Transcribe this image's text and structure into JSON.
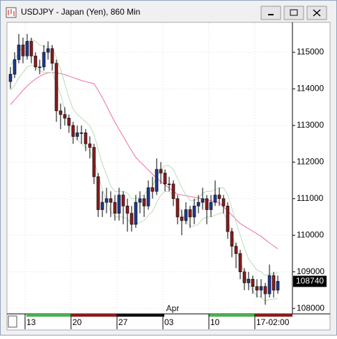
{
  "window": {
    "title": "USDJPY - Japan (Yen), 860 Min"
  },
  "chart_data": {
    "type": "candlestick",
    "categories": [
      null,
      null,
      null,
      null,
      "13",
      null,
      null,
      null,
      null,
      null,
      null,
      null,
      null,
      null,
      null,
      "20",
      null,
      null,
      null,
      null,
      null,
      null,
      null,
      null,
      null,
      null,
      "27",
      null,
      null,
      null,
      null,
      null,
      null,
      null,
      null,
      null,
      null,
      "03",
      null,
      null,
      null,
      null,
      null,
      null,
      null,
      null,
      null,
      null,
      "10",
      null,
      null,
      null,
      null,
      null,
      null,
      null,
      null,
      null,
      null,
      "17-02:00",
      null,
      null,
      null,
      null,
      null
    ],
    "month_label": "Apr",
    "open": [
      114200,
      114400,
      114800,
      115200,
      114900,
      115300,
      114900,
      114600,
      114600,
      115000,
      115100,
      114700,
      113400,
      113300,
      113200,
      113000,
      112700,
      112800,
      112800,
      112500,
      112400,
      111600,
      110700,
      110900,
      111000,
      110900,
      110600,
      111100,
      110800,
      110600,
      110300,
      110900,
      111000,
      110800,
      111300,
      111200,
      111800,
      111700,
      111400,
      111400,
      111000,
      110500,
      110400,
      110700,
      110500,
      110800,
      110900,
      111000,
      110700,
      110900,
      111100,
      111000,
      110800,
      110100,
      109700,
      109500,
      109000,
      108700,
      108800,
      108600,
      108500,
      108600,
      108400,
      108900,
      108500
    ],
    "high": [
      114600,
      115000,
      115500,
      115400,
      115500,
      115400,
      115000,
      114800,
      115200,
      115300,
      115200,
      114800,
      113600,
      113500,
      113300,
      113100,
      113000,
      113000,
      112900,
      112700,
      112500,
      111700,
      111200,
      111300,
      111200,
      111100,
      111300,
      111200,
      111000,
      110800,
      111100,
      111200,
      111100,
      111500,
      111600,
      112100,
      112000,
      111800,
      111600,
      111500,
      111100,
      110700,
      110900,
      110800,
      111000,
      111100,
      111300,
      111100,
      111100,
      111500,
      111300,
      111100,
      110900,
      110200,
      109800,
      109600,
      109100,
      109000,
      108900,
      108800,
      108800,
      108700,
      109200,
      109000,
      108900
    ],
    "low": [
      114000,
      114300,
      114700,
      114700,
      114800,
      114700,
      114500,
      114400,
      114500,
      114800,
      114500,
      113100,
      112900,
      113000,
      112800,
      112500,
      112600,
      112500,
      112300,
      112100,
      111400,
      110500,
      110500,
      110600,
      110500,
      110400,
      110400,
      110300,
      110100,
      110100,
      110200,
      110600,
      110500,
      110700,
      111000,
      111100,
      111400,
      111200,
      111200,
      110800,
      110300,
      110000,
      110300,
      110200,
      110300,
      110600,
      110700,
      110300,
      110500,
      110800,
      110800,
      110600,
      109900,
      109400,
      109100,
      108800,
      108500,
      108500,
      108400,
      108300,
      108300,
      108100,
      108300,
      108300,
      108400
    ],
    "close": [
      114400,
      114800,
      115200,
      114900,
      115300,
      114900,
      114600,
      114600,
      115000,
      115100,
      114700,
      113400,
      113300,
      113200,
      113000,
      112700,
      112800,
      112800,
      112500,
      112400,
      111600,
      110700,
      110900,
      111000,
      110900,
      110600,
      111100,
      110800,
      110600,
      110300,
      110900,
      111000,
      110800,
      111300,
      111200,
      111800,
      111700,
      111400,
      111400,
      111000,
      110500,
      110400,
      110700,
      110500,
      110800,
      110900,
      111000,
      110700,
      110900,
      111100,
      111000,
      110800,
      110100,
      109700,
      109500,
      109000,
      108700,
      108800,
      108600,
      108500,
      108600,
      108400,
      108900,
      108500,
      108740
    ],
    "up_color": "#1f3a93",
    "down_color": "#8b1c1c",
    "overlays": [
      {
        "color": "#f06aa8",
        "values": [
          113570,
          113700,
          113830,
          113960,
          114080,
          114180,
          114270,
          114340,
          114400,
          114440,
          114450,
          114440,
          114420,
          114390,
          114350,
          114310,
          114270,
          114230,
          114200,
          114170,
          114140,
          113960,
          113760,
          113540,
          113310,
          113090,
          112890,
          112700,
          112500,
          112310,
          112130,
          112010,
          111900,
          111780,
          111670,
          111560,
          111470,
          111380,
          111290,
          111200,
          111120,
          111100,
          111080,
          111060,
          111040,
          111020,
          110990,
          110970,
          110940,
          110920,
          110890,
          110780,
          110660,
          110550,
          110430,
          110320,
          110250,
          110180,
          110110,
          110040,
          109970,
          109880,
          109790,
          109710,
          109630
        ]
      },
      {
        "color": "#b9dcb9",
        "values": [
          114650,
          114800,
          115000,
          115150,
          115300,
          115350,
          115300,
          115200,
          115150,
          115150,
          115150,
          114850,
          114550,
          114150,
          113750,
          113450,
          113300,
          113200,
          113100,
          113000,
          112750,
          112350,
          111950,
          111650,
          111350,
          111200,
          111200,
          111200,
          111150,
          111000,
          111000,
          111050,
          111100,
          111250,
          111350,
          111600,
          111800,
          111900,
          111900,
          111800,
          111550,
          111300,
          111100,
          110950,
          110950,
          111000,
          111150,
          111200,
          111200,
          111250,
          111300,
          111300,
          111100,
          110750,
          110350,
          110000,
          109650,
          109350,
          109200,
          109050,
          109000,
          108900,
          108950,
          108950,
          108980
        ]
      },
      {
        "color": "#b9dcb9",
        "values": [
          113950,
          114100,
          114300,
          114450,
          114600,
          114650,
          114600,
          114500,
          114450,
          114450,
          114450,
          114150,
          113850,
          113450,
          113050,
          112750,
          112600,
          112500,
          112400,
          112300,
          112050,
          111650,
          111250,
          110950,
          110650,
          110500,
          110500,
          110500,
          110450,
          110300,
          110300,
          110350,
          110400,
          110550,
          110650,
          110900,
          111100,
          111200,
          111200,
          111100,
          110850,
          110600,
          110400,
          110250,
          110250,
          110300,
          110450,
          110500,
          110500,
          110550,
          110600,
          110600,
          110400,
          110050,
          109650,
          109300,
          108950,
          108650,
          108500,
          108350,
          108300,
          108200,
          108250,
          108250,
          108280
        ]
      }
    ],
    "ylim": [
      107870,
      115800
    ],
    "yticks": [
      108000,
      109000,
      110000,
      111000,
      112000,
      113000,
      114000,
      115000
    ],
    "grid": true
  }
}
